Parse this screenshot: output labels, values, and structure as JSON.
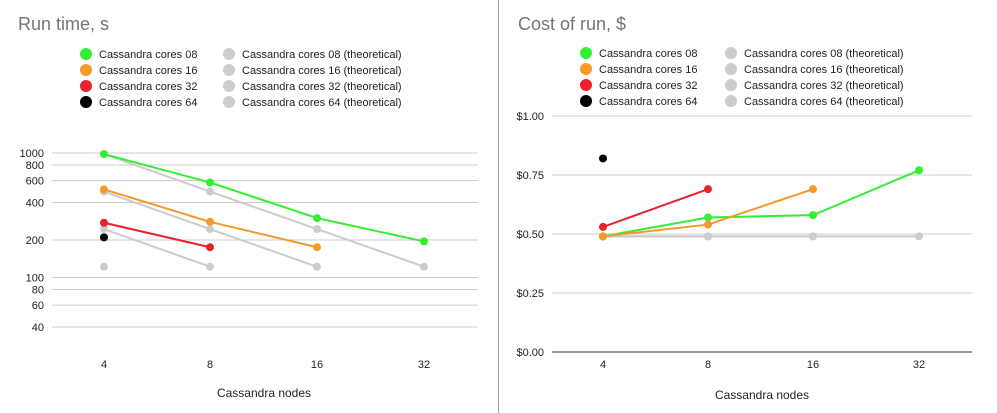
{
  "chart_data": [
    {
      "type": "line",
      "title": "Run time, s",
      "xlabel": "Cassandra nodes",
      "ylabel": "",
      "y_scale": "log",
      "ylim": [
        30,
        1100
      ],
      "y_ticks": [
        40,
        60,
        80,
        100,
        200,
        400,
        600,
        800,
        1000
      ],
      "x": [
        4,
        8,
        16,
        32
      ],
      "x_labels": [
        "4",
        "8",
        "16",
        "32"
      ],
      "grid": true,
      "legend_position": "top",
      "series": [
        {
          "name": "Cassandra cores 08",
          "color": "#33ee33",
          "values": [
            980,
            580,
            300,
            195
          ]
        },
        {
          "name": "Cassandra cores 16",
          "color": "#f4992a",
          "values": [
            510,
            280,
            175,
            null
          ]
        },
        {
          "name": "Cassandra cores 32",
          "color": "#e8212a",
          "values": [
            275,
            175,
            null,
            null
          ]
        },
        {
          "name": "Cassandra cores 64",
          "color": "#000000",
          "values": [
            210,
            null,
            null,
            null
          ]
        },
        {
          "name": "Cassandra cores 08 (theoretical)",
          "color": "#cccccc",
          "values": [
            980,
            490,
            245,
            122
          ]
        },
        {
          "name": "Cassandra cores 16 (theoretical)",
          "color": "#cccccc",
          "values": [
            490,
            245,
            122,
            null
          ]
        },
        {
          "name": "Cassandra cores 32 (theoretical)",
          "color": "#cccccc",
          "values": [
            245,
            122,
            null,
            null
          ]
        },
        {
          "name": "Cassandra cores 64 (theoretical)",
          "color": "#cccccc",
          "values": [
            122,
            null,
            null,
            null
          ]
        }
      ]
    },
    {
      "type": "line",
      "title": "Cost of run, $",
      "xlabel": "Cassandra nodes",
      "ylabel": "",
      "y_scale": "linear",
      "ylim": [
        0,
        1.0
      ],
      "y_ticks": [
        0,
        0.25,
        0.5,
        0.75,
        1.0
      ],
      "y_tick_labels": [
        "$0.00",
        "$0.25",
        "$0.50",
        "$0.75",
        "$1.00"
      ],
      "x": [
        4,
        8,
        16,
        32
      ],
      "x_labels": [
        "4",
        "8",
        "16",
        "32"
      ],
      "grid": true,
      "legend_position": "top",
      "series": [
        {
          "name": "Cassandra cores 08",
          "color": "#33ee33",
          "values": [
            0.49,
            0.57,
            0.58,
            0.77
          ]
        },
        {
          "name": "Cassandra cores 16",
          "color": "#f4992a",
          "values": [
            0.49,
            0.54,
            0.69,
            null
          ]
        },
        {
          "name": "Cassandra cores 32",
          "color": "#e8212a",
          "values": [
            0.53,
            0.69,
            null,
            null
          ]
        },
        {
          "name": "Cassandra cores 64",
          "color": "#000000",
          "values": [
            0.82,
            null,
            null,
            null
          ]
        },
        {
          "name": "Cassandra cores 08 (theoretical)",
          "color": "#cccccc",
          "values": [
            0.49,
            0.49,
            0.49,
            0.49
          ]
        },
        {
          "name": "Cassandra cores 16 (theoretical)",
          "color": "#cccccc",
          "values": [
            0.49,
            0.49,
            0.49,
            null
          ]
        },
        {
          "name": "Cassandra cores 32 (theoretical)",
          "color": "#cccccc",
          "values": [
            0.49,
            0.49,
            null,
            null
          ]
        },
        {
          "name": "Cassandra cores 64 (theoretical)",
          "color": "#cccccc",
          "values": [
            0.49,
            null,
            null,
            null
          ]
        }
      ]
    }
  ]
}
